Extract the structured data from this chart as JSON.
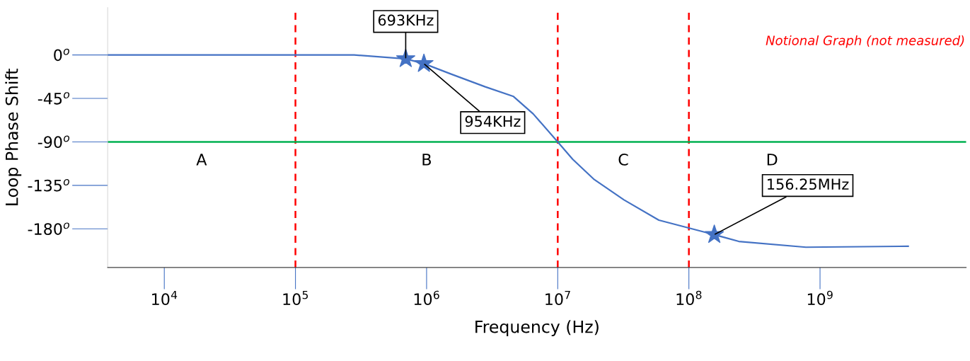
{
  "chart_data": {
    "type": "line",
    "xlabel": "Frequency (Hz)",
    "ylabel": "Loop Phase Shift",
    "log": "x",
    "grid": false,
    "legend": false,
    "xlim": [
      3700,
      13000000000
    ],
    "ylim": [
      -220,
      49
    ],
    "xticks": [
      {
        "value": 10000,
        "label": "10$^{4}$"
      },
      {
        "value": 100000,
        "label": "10$^{5}$"
      },
      {
        "value": 1000000,
        "label": "10$^{6}$"
      },
      {
        "value": 10000000,
        "label": "10$^{7}$"
      },
      {
        "value": 100000000,
        "label": "10$^{8}$"
      },
      {
        "value": 1000000000,
        "label": "10$^{9}$"
      }
    ],
    "yticks": [
      {
        "value": 0,
        "label": "0$^{o}$"
      },
      {
        "value": -45,
        "label": "-45$^{o}$"
      },
      {
        "value": -90,
        "label": "-90$^{o}$"
      },
      {
        "value": -135,
        "label": "-135$^{o}$"
      },
      {
        "value": -180,
        "label": "-180$^{o}$"
      }
    ],
    "series": [
      {
        "color": "#4472c4",
        "marker": "none",
        "line_style": "solid",
        "x": [
          3700,
          280000,
          693000,
          954000,
          1550000,
          2800000,
          4600000,
          6500000,
          10000000,
          13000000,
          19000000,
          32000000,
          59000000,
          156250000,
          240000000,
          780000000,
          4700000000
        ],
        "values": [
          0,
          0,
          -4,
          -9,
          -20,
          -33,
          -43,
          -61,
          -90,
          -108,
          -129,
          -150,
          -171,
          -186,
          -193,
          -199,
          -198
        ]
      },
      {
        "type": "scatter",
        "color": "#4472c4",
        "marker": "star",
        "x": [
          693000,
          954000,
          156250000
        ],
        "values": [
          -4,
          -9,
          -186
        ]
      }
    ],
    "ref_lines": [
      {
        "axis": "x",
        "value": 100000,
        "color": "#ff0000",
        "line_style": "dashed"
      },
      {
        "axis": "x",
        "value": 10000000,
        "color": "#ff0000",
        "line_style": "dashed"
      },
      {
        "axis": "x",
        "value": 100000000,
        "color": "#ff0000",
        "line_style": "dashed"
      },
      {
        "axis": "y",
        "value": -90,
        "color": "#00b050",
        "line_style": "solid"
      }
    ],
    "annotations": [
      {
        "text": "693KHz",
        "x": 693000,
        "y": -4
      },
      {
        "text": "954KHz",
        "x": 954000,
        "y": -9
      },
      {
        "text": "156.25MHz",
        "x": 156250000,
        "y": -186
      },
      "A",
      "B",
      "C",
      "D",
      "Notional Graph (not measured)"
    ]
  }
}
